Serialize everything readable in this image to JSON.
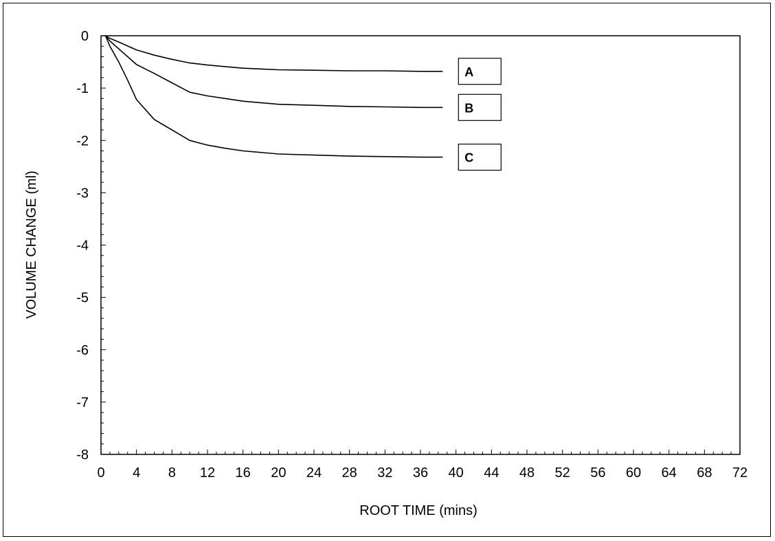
{
  "chart_data": {
    "type": "line",
    "title": "",
    "xlabel": "ROOT TIME (mins)",
    "ylabel": "VOLUME CHANGE (ml)",
    "xlim": [
      0,
      72
    ],
    "ylim": [
      -8,
      0
    ],
    "x_ticks": [
      0,
      4,
      8,
      12,
      16,
      20,
      24,
      28,
      32,
      36,
      40,
      44,
      48,
      52,
      56,
      60,
      64,
      68,
      72
    ],
    "y_ticks": [
      0,
      -1,
      -2,
      -3,
      -4,
      -5,
      -6,
      -7,
      -8
    ],
    "grid": false,
    "series": [
      {
        "name": "A",
        "x": [
          0.5,
          1,
          2,
          4,
          6,
          8,
          10,
          12,
          14,
          16,
          20,
          24,
          28,
          32,
          36,
          38.5
        ],
        "y": [
          0,
          -0.05,
          -0.12,
          -0.27,
          -0.37,
          -0.45,
          -0.52,
          -0.56,
          -0.59,
          -0.62,
          -0.65,
          -0.66,
          -0.67,
          -0.67,
          -0.68,
          -0.68
        ]
      },
      {
        "name": "B",
        "x": [
          0.5,
          1,
          2,
          4,
          6,
          8,
          10,
          12,
          14,
          16,
          20,
          24,
          28,
          32,
          36,
          38.5
        ],
        "y": [
          0,
          -0.1,
          -0.25,
          -0.55,
          -0.72,
          -0.9,
          -1.08,
          -1.15,
          -1.2,
          -1.25,
          -1.31,
          -1.33,
          -1.35,
          -1.36,
          -1.37,
          -1.37
        ]
      },
      {
        "name": "C",
        "x": [
          0.5,
          1,
          2,
          3,
          4,
          6,
          8,
          10,
          12,
          14,
          16,
          20,
          24,
          28,
          32,
          36,
          38.5
        ],
        "y": [
          0,
          -0.2,
          -0.5,
          -0.85,
          -1.22,
          -1.6,
          -1.8,
          -2.0,
          -2.09,
          -2.15,
          -2.2,
          -2.26,
          -2.28,
          -2.3,
          -2.31,
          -2.32,
          -2.32
        ]
      }
    ]
  }
}
